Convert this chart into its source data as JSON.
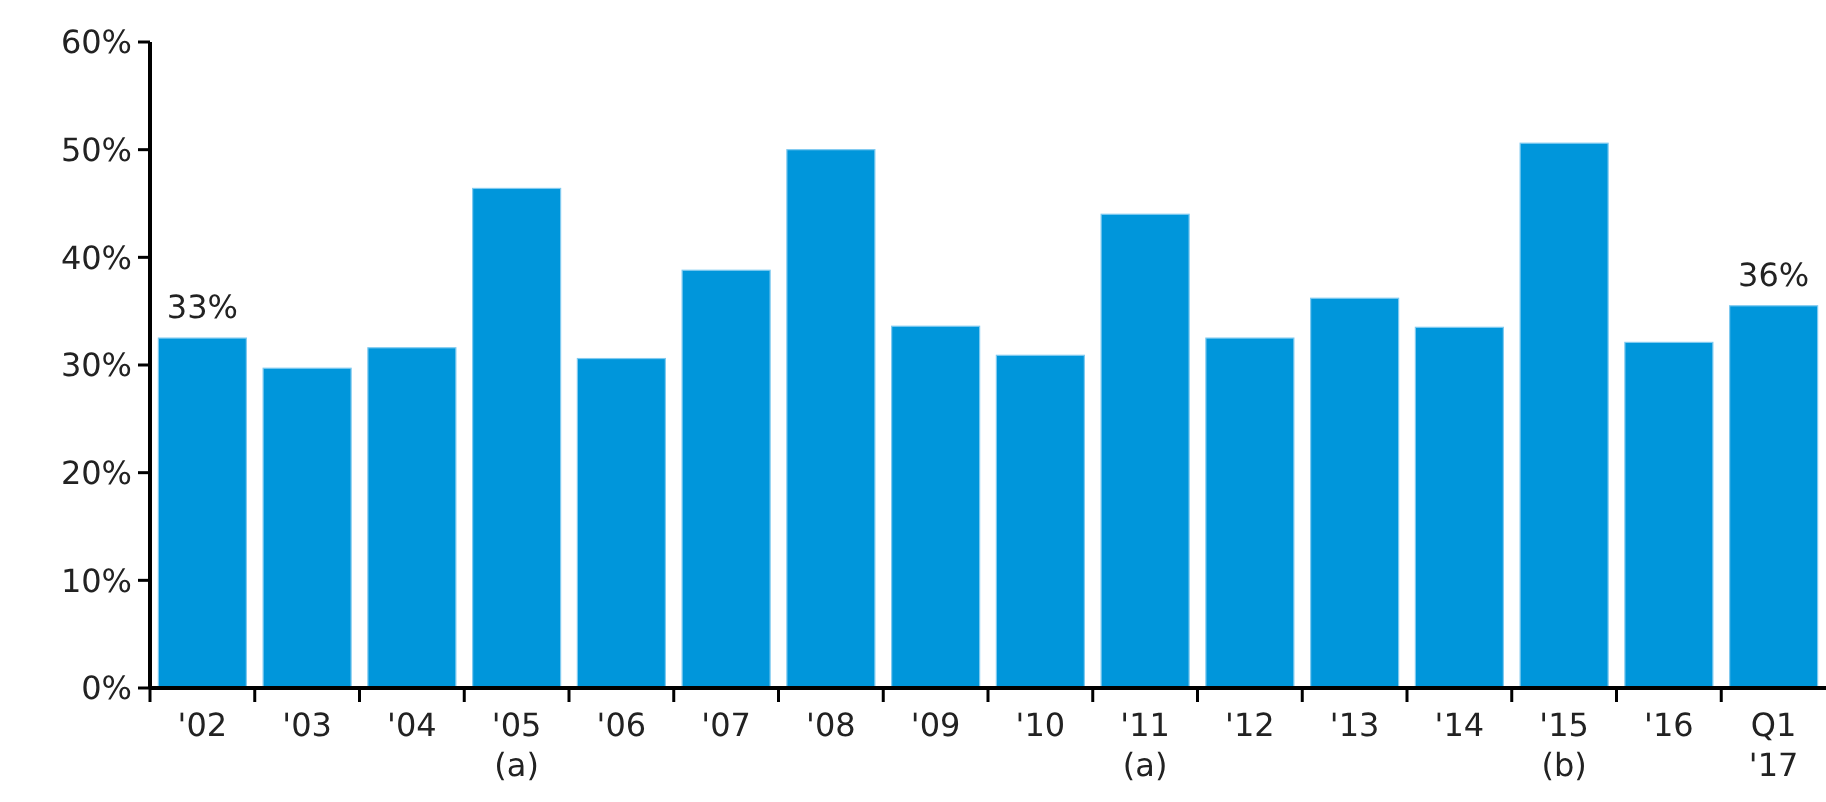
{
  "chart_data": {
    "type": "bar",
    "categories": [
      "'02",
      "'03",
      "'04",
      "'05\n(a)",
      "'06",
      "'07",
      "'08",
      "'09",
      "'10",
      "'11\n(a)",
      "'12",
      "'13",
      "'14",
      "'15\n(b)",
      "'16",
      "Q1\n'17"
    ],
    "values": [
      32.5,
      29.7,
      31.6,
      46.4,
      30.6,
      38.8,
      50.0,
      33.6,
      30.9,
      44.0,
      32.5,
      36.2,
      33.5,
      50.6,
      32.1,
      35.5
    ],
    "value_labels": [
      "33%",
      null,
      null,
      null,
      null,
      null,
      null,
      null,
      null,
      null,
      null,
      null,
      null,
      null,
      null,
      "36%"
    ],
    "color": "#0096db",
    "ylim": [
      0,
      60
    ],
    "yticks": [
      {
        "value": 0,
        "label": "0%"
      },
      {
        "value": 10,
        "label": "10%"
      },
      {
        "value": 20,
        "label": "20%"
      },
      {
        "value": 30,
        "label": "30%"
      },
      {
        "value": 40,
        "label": "40%"
      },
      {
        "value": 50,
        "label": "50%"
      },
      {
        "value": 60,
        "label": "60%"
      }
    ],
    "grid": false
  }
}
